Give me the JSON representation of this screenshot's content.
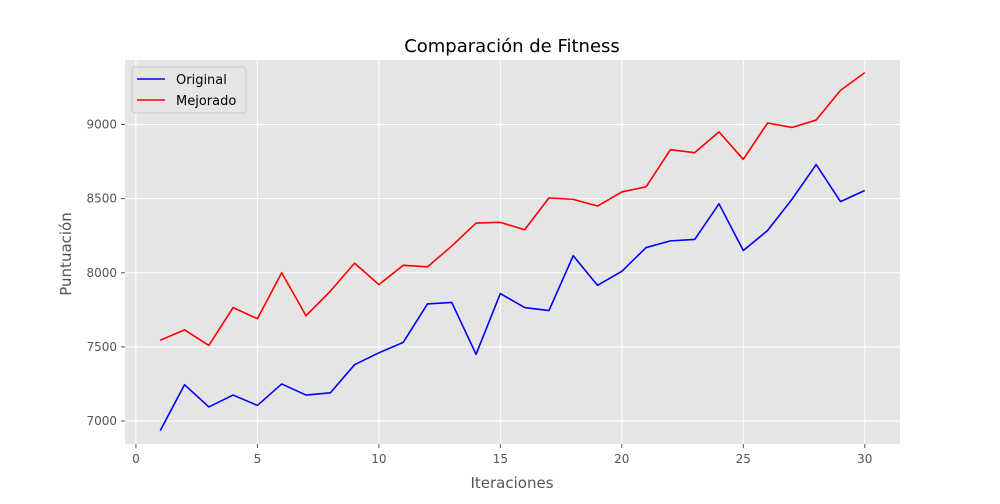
{
  "chart_data": {
    "type": "line",
    "title": "Comparación de Fitness",
    "xlabel": "Iteraciones",
    "ylabel": "Puntuación",
    "xlim": [
      -0.45,
      31.45
    ],
    "ylim": [
      6845,
      9435
    ],
    "xticks": [
      0,
      5,
      10,
      15,
      20,
      25,
      30
    ],
    "yticks": [
      7000,
      7500,
      8000,
      8500,
      9000
    ],
    "grid": true,
    "legend_position": "top-left",
    "x": [
      1,
      2,
      3,
      4,
      5,
      6,
      7,
      8,
      9,
      10,
      11,
      12,
      13,
      14,
      15,
      16,
      17,
      18,
      19,
      20,
      21,
      22,
      23,
      24,
      25,
      26,
      27,
      28,
      29,
      30
    ],
    "series": [
      {
        "name": "Original",
        "color": "#0000ff",
        "values": [
          6935,
          7245,
          7095,
          7175,
          7105,
          7250,
          7175,
          7190,
          7380,
          7460,
          7530,
          7790,
          7800,
          7450,
          7860,
          7765,
          7745,
          8115,
          7915,
          8010,
          8170,
          8215,
          8225,
          8465,
          8150,
          8285,
          8495,
          8730,
          8480,
          8555
        ]
      },
      {
        "name": "Mejorado",
        "color": "#ff0000",
        "values": [
          7545,
          7615,
          7510,
          7765,
          7690,
          8000,
          7710,
          7875,
          8065,
          7920,
          8050,
          8040,
          8180,
          8335,
          8340,
          8290,
          8505,
          8495,
          8450,
          8545,
          8580,
          8830,
          8810,
          8950,
          8765,
          9010,
          8980,
          9030,
          9230,
          9350
        ]
      }
    ]
  }
}
